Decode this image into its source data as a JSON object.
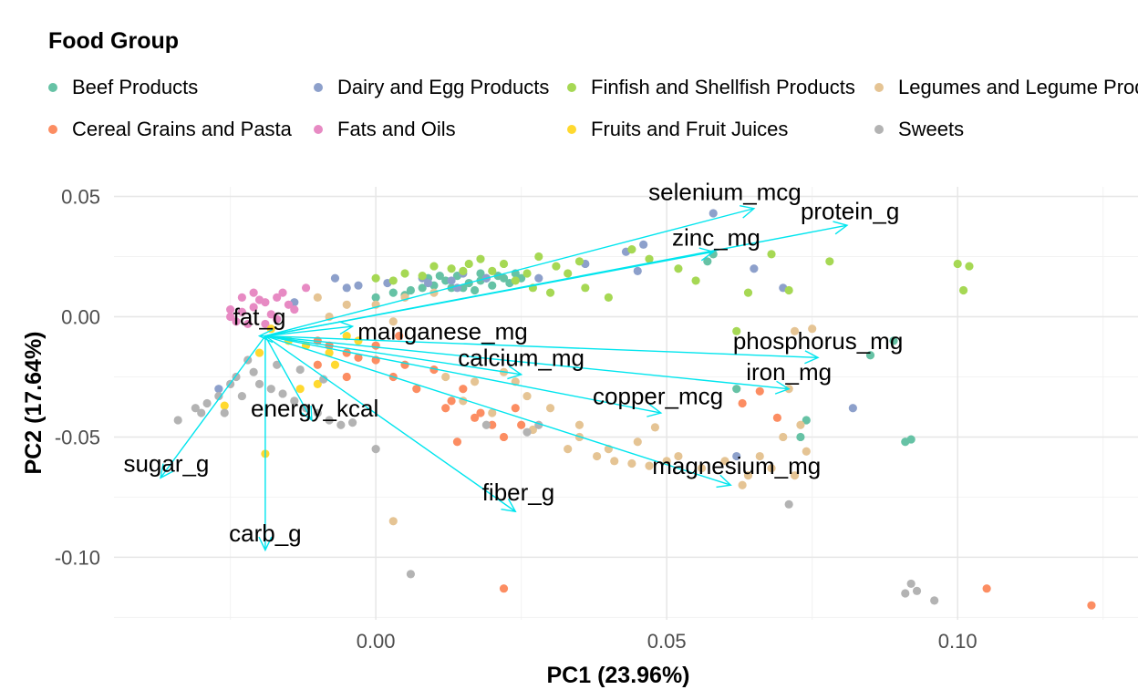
{
  "chart_data": {
    "type": "scatter",
    "title": "",
    "xlabel": "PC1 (23.96%)",
    "ylabel": "PC2 (17.64%)",
    "xlim": [
      -0.045,
      0.131
    ],
    "ylim": [
      -0.126,
      0.054
    ],
    "x_ticks": [
      0.0,
      0.05,
      0.1
    ],
    "x_tick_labels": [
      "0.00",
      "0.05",
      "0.10"
    ],
    "y_ticks": [
      0.05,
      0.0,
      -0.05,
      -0.1
    ],
    "y_tick_labels": [
      "0.05",
      "0.00",
      "-0.05",
      "-0.10"
    ],
    "grid": true,
    "legend_placement": "top",
    "legend": {
      "title": "Food Group",
      "entries": [
        {
          "name": "Beef Products",
          "color": "#66c2a5"
        },
        {
          "name": "Dairy and Egg Products",
          "color": "#8da0cb"
        },
        {
          "name": "Finfish and Shellfish Products",
          "color": "#a6d854"
        },
        {
          "name": "Legumes and Legume Products",
          "color": "#e5c494"
        },
        {
          "name": "Cereal Grains and Pasta",
          "color": "#fc8d62"
        },
        {
          "name": "Fats and Oils",
          "color": "#e78ac3"
        },
        {
          "name": "Fruits and Fruit Juices",
          "color": "#ffd92f"
        },
        {
          "name": "Sweets",
          "color": "#b3b3b3"
        }
      ]
    },
    "arrow_color": "#00e5ee",
    "arrow_origin": [
      -0.019,
      -0.008
    ],
    "loadings": [
      {
        "name": "selenium_mcg",
        "x": 0.065,
        "y": 0.045,
        "lx": 0.06,
        "ly": 0.052
      },
      {
        "name": "protein_g",
        "x": 0.081,
        "y": 0.038,
        "lx": 0.0815,
        "ly": 0.044
      },
      {
        "name": "zinc_mg",
        "x": 0.058,
        "y": 0.027,
        "lx": 0.0585,
        "ly": 0.033
      },
      {
        "name": "fat_g",
        "x": -0.02,
        "y": -0.008,
        "lx": -0.02,
        "ly": 0.0
      },
      {
        "name": "manganese_mg",
        "x": -0.004,
        "y": -0.004,
        "lx": 0.0115,
        "ly": -0.006
      },
      {
        "name": "phosphorus_mg",
        "x": 0.076,
        "y": -0.017,
        "lx": 0.076,
        "ly": -0.01
      },
      {
        "name": "calcium_mg",
        "x": 0.025,
        "y": -0.024,
        "lx": 0.025,
        "ly": -0.017
      },
      {
        "name": "iron_mg",
        "x": 0.071,
        "y": -0.03,
        "lx": 0.071,
        "ly": -0.023
      },
      {
        "name": "copper_mcg",
        "x": 0.049,
        "y": -0.04,
        "lx": 0.0485,
        "ly": -0.033
      },
      {
        "name": "energy_kcal",
        "x": -0.011,
        "y": -0.043,
        "lx": -0.0105,
        "ly": -0.038
      },
      {
        "name": "sugar_g",
        "x": -0.037,
        "y": -0.067,
        "lx": -0.036,
        "ly": -0.061
      },
      {
        "name": "magnesium_mg",
        "x": 0.061,
        "y": -0.07,
        "lx": 0.062,
        "ly": -0.062
      },
      {
        "name": "fiber_g",
        "x": 0.024,
        "y": -0.081,
        "lx": 0.0245,
        "ly": -0.073
      },
      {
        "name": "carb_g",
        "x": -0.019,
        "y": -0.097,
        "lx": -0.019,
        "ly": -0.09
      }
    ],
    "series": [
      {
        "name": "Beef Products",
        "points": [
          [
            0.014,
            0.017
          ],
          [
            0.018,
            0.018
          ],
          [
            0.022,
            0.016
          ],
          [
            0.016,
            0.014
          ],
          [
            0.012,
            0.015
          ],
          [
            0.02,
            0.013
          ],
          [
            0.024,
            0.018
          ],
          [
            0.01,
            0.013
          ],
          [
            0.008,
            0.012
          ],
          [
            0.019,
            0.016
          ],
          [
            0.023,
            0.014
          ],
          [
            0.015,
            0.012
          ],
          [
            0.011,
            0.017
          ],
          [
            0.017,
            0.011
          ],
          [
            0.021,
            0.017
          ],
          [
            0.006,
            0.011
          ],
          [
            0.013,
            0.012
          ],
          [
            0.018,
            0.015
          ],
          [
            0.009,
            0.016
          ],
          [
            0.025,
            0.016
          ],
          [
            0.005,
            0.009
          ],
          [
            0.003,
            0.01
          ],
          [
            0.0,
            0.008
          ],
          [
            0.058,
            0.026
          ],
          [
            0.057,
            0.023
          ],
          [
            0.062,
            -0.03
          ],
          [
            0.073,
            -0.05
          ],
          [
            0.091,
            -0.052
          ],
          [
            0.092,
            -0.051
          ],
          [
            0.085,
            -0.016
          ],
          [
            0.089,
            -0.01
          ],
          [
            0.074,
            -0.043
          ]
        ]
      },
      {
        "name": "Dairy and Egg Products",
        "points": [
          [
            0.058,
            0.043
          ],
          [
            0.046,
            0.03
          ],
          [
            0.036,
            0.022
          ],
          [
            0.028,
            0.016
          ],
          [
            0.043,
            0.027
          ],
          [
            0.065,
            0.02
          ],
          [
            0.07,
            0.012
          ],
          [
            0.082,
            -0.038
          ],
          [
            0.062,
            -0.058
          ],
          [
            0.015,
            0.018
          ],
          [
            0.013,
            0.015
          ],
          [
            0.008,
            0.016
          ],
          [
            -0.007,
            0.016
          ],
          [
            0.002,
            0.014
          ],
          [
            -0.003,
            0.013
          ],
          [
            0.014,
            0.012
          ],
          [
            -0.005,
            0.012
          ],
          [
            0.019,
            0.016
          ],
          [
            0.045,
            0.019
          ],
          [
            -0.014,
            0.006
          ],
          [
            -0.027,
            -0.03
          ],
          [
            0.009,
            0.014
          ]
        ]
      },
      {
        "name": "Finfish and Shellfish Products",
        "points": [
          [
            0.013,
            0.02
          ],
          [
            0.02,
            0.019
          ],
          [
            0.026,
            0.018
          ],
          [
            0.031,
            0.021
          ],
          [
            0.035,
            0.023
          ],
          [
            0.028,
            0.025
          ],
          [
            0.018,
            0.024
          ],
          [
            0.01,
            0.021
          ],
          [
            0.005,
            0.018
          ],
          [
            0.0,
            0.016
          ],
          [
            0.024,
            0.015
          ],
          [
            0.03,
            0.01
          ],
          [
            0.036,
            0.012
          ],
          [
            0.016,
            0.022
          ],
          [
            0.022,
            0.022
          ],
          [
            0.008,
            0.017
          ],
          [
            0.003,
            0.015
          ],
          [
            0.033,
            0.018
          ],
          [
            0.027,
            0.012
          ],
          [
            0.015,
            0.019
          ],
          [
            0.044,
            0.028
          ],
          [
            0.047,
            0.024
          ],
          [
            0.052,
            0.02
          ],
          [
            0.078,
            0.023
          ],
          [
            0.071,
            0.011
          ],
          [
            0.068,
            0.026
          ],
          [
            0.1,
            0.022
          ],
          [
            0.102,
            0.021
          ],
          [
            0.101,
            0.011
          ],
          [
            0.064,
            0.01
          ],
          [
            0.062,
            -0.006
          ],
          [
            0.055,
            0.015
          ],
          [
            0.04,
            0.008
          ]
        ]
      },
      {
        "name": "Legumes and Legume Products",
        "points": [
          [
            0.012,
            -0.025
          ],
          [
            0.017,
            -0.027
          ],
          [
            0.022,
            -0.023
          ],
          [
            0.026,
            -0.033
          ],
          [
            0.03,
            -0.038
          ],
          [
            0.035,
            -0.045
          ],
          [
            0.033,
            -0.055
          ],
          [
            0.038,
            -0.058
          ],
          [
            0.041,
            -0.06
          ],
          [
            0.044,
            -0.061
          ],
          [
            0.047,
            -0.062
          ],
          [
            0.05,
            -0.06
          ],
          [
            0.027,
            -0.047
          ],
          [
            0.02,
            -0.04
          ],
          [
            0.015,
            -0.035
          ],
          [
            0.035,
            -0.05
          ],
          [
            0.04,
            -0.055
          ],
          [
            0.045,
            -0.052
          ],
          [
            0.052,
            -0.058
          ],
          [
            0.056,
            -0.063
          ],
          [
            0.06,
            -0.06
          ],
          [
            0.064,
            -0.066
          ],
          [
            0.068,
            -0.063
          ],
          [
            0.072,
            -0.066
          ],
          [
            0.074,
            -0.056
          ],
          [
            0.07,
            -0.05
          ],
          [
            0.073,
            -0.045
          ],
          [
            0.071,
            -0.03
          ],
          [
            0.075,
            -0.005
          ],
          [
            0.072,
            -0.006
          ],
          [
            0.01,
            0.01
          ],
          [
            0.005,
            0.008
          ],
          [
            0.0,
            0.005
          ],
          [
            -0.005,
            0.005
          ],
          [
            -0.01,
            0.008
          ],
          [
            0.003,
            -0.002
          ],
          [
            -0.008,
            0.0
          ],
          [
            0.066,
            -0.058
          ],
          [
            0.063,
            -0.07
          ],
          [
            0.048,
            -0.046
          ],
          [
            0.003,
            -0.085
          ],
          [
            0.024,
            -0.027
          ]
        ]
      },
      {
        "name": "Cereal Grains and Pasta",
        "points": [
          [
            -0.01,
            -0.01
          ],
          [
            -0.005,
            -0.015
          ],
          [
            0.0,
            -0.018
          ],
          [
            0.005,
            -0.02
          ],
          [
            0.01,
            -0.022
          ],
          [
            0.015,
            -0.03
          ],
          [
            0.013,
            -0.035
          ],
          [
            0.018,
            -0.04
          ],
          [
            0.02,
            -0.045
          ],
          [
            0.022,
            -0.05
          ],
          [
            0.025,
            -0.045
          ],
          [
            0.017,
            -0.042
          ],
          [
            0.012,
            -0.038
          ],
          [
            -0.003,
            -0.017
          ],
          [
            -0.008,
            -0.012
          ],
          [
            0.003,
            -0.025
          ],
          [
            0.007,
            -0.03
          ],
          [
            0.024,
            -0.038
          ],
          [
            -0.01,
            -0.02
          ],
          [
            -0.005,
            -0.025
          ],
          [
            0.0,
            -0.012
          ],
          [
            0.004,
            -0.008
          ],
          [
            0.063,
            -0.036
          ],
          [
            0.066,
            -0.031
          ],
          [
            0.069,
            -0.042
          ],
          [
            0.022,
            -0.113
          ],
          [
            0.105,
            -0.113
          ],
          [
            0.123,
            -0.12
          ],
          [
            0.014,
            -0.052
          ]
        ]
      },
      {
        "name": "Fats and Oils",
        "points": [
          [
            -0.025,
            0.003
          ],
          [
            -0.023,
            0.002
          ],
          [
            -0.021,
            0.004
          ],
          [
            -0.019,
            0.006
          ],
          [
            -0.017,
            0.008
          ],
          [
            -0.015,
            0.005
          ],
          [
            -0.022,
            -0.003
          ],
          [
            -0.024,
            -0.002
          ],
          [
            -0.018,
            0.001
          ],
          [
            -0.02,
            0.007
          ],
          [
            -0.016,
            0.01
          ],
          [
            -0.014,
            0.003
          ],
          [
            -0.023,
            0.008
          ],
          [
            -0.019,
            -0.003
          ],
          [
            -0.021,
            0.01
          ],
          [
            -0.012,
            0.012
          ],
          [
            -0.017,
            -0.001
          ],
          [
            -0.025,
            0.0
          ]
        ]
      },
      {
        "name": "Fruits and Fruit Juices",
        "points": [
          [
            -0.018,
            -0.005
          ],
          [
            -0.015,
            -0.01
          ],
          [
            -0.012,
            -0.012
          ],
          [
            -0.008,
            -0.015
          ],
          [
            -0.005,
            -0.008
          ],
          [
            -0.013,
            -0.03
          ],
          [
            -0.01,
            -0.028
          ],
          [
            -0.026,
            -0.037
          ],
          [
            -0.019,
            -0.057
          ],
          [
            -0.003,
            -0.01
          ],
          [
            -0.007,
            -0.02
          ],
          [
            -0.02,
            -0.015
          ]
        ]
      },
      {
        "name": "Sweets",
        "points": [
          [
            -0.034,
            -0.043
          ],
          [
            -0.031,
            -0.038
          ],
          [
            -0.029,
            -0.036
          ],
          [
            -0.027,
            -0.033
          ],
          [
            -0.025,
            -0.028
          ],
          [
            -0.024,
            -0.025
          ],
          [
            -0.021,
            -0.023
          ],
          [
            -0.02,
            -0.028
          ],
          [
            -0.018,
            -0.03
          ],
          [
            -0.016,
            -0.032
          ],
          [
            -0.014,
            -0.035
          ],
          [
            -0.012,
            -0.038
          ],
          [
            -0.01,
            -0.04
          ],
          [
            -0.008,
            -0.043
          ],
          [
            -0.006,
            -0.045
          ],
          [
            -0.004,
            -0.044
          ],
          [
            -0.022,
            -0.018
          ],
          [
            -0.017,
            -0.02
          ],
          [
            -0.013,
            -0.022
          ],
          [
            -0.009,
            -0.026
          ],
          [
            -0.026,
            -0.04
          ],
          [
            -0.023,
            -0.033
          ],
          [
            -0.03,
            -0.04
          ],
          [
            0.0,
            -0.055
          ],
          [
            0.006,
            -0.107
          ],
          [
            0.071,
            -0.078
          ],
          [
            0.091,
            -0.115
          ],
          [
            0.092,
            -0.111
          ],
          [
            0.093,
            -0.114
          ],
          [
            0.096,
            -0.118
          ],
          [
            0.026,
            -0.048
          ],
          [
            0.028,
            -0.045
          ],
          [
            0.019,
            -0.045
          ]
        ]
      }
    ]
  }
}
